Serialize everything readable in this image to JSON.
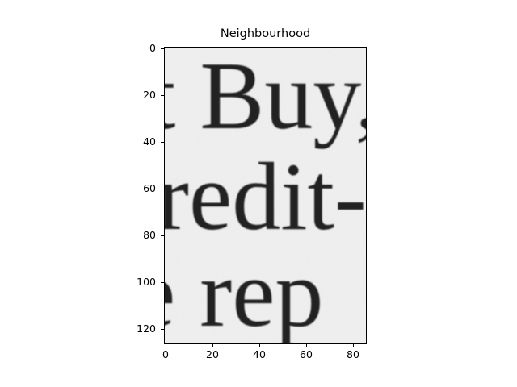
{
  "title": "Neighbourhood",
  "image": {
    "rows": [
      {
        "text": "t Buy,",
        "y": 28
      },
      {
        "text": "redit-",
        "y": 68
      },
      {
        "text": "e rep",
        "y": 112
      }
    ],
    "background": "#eeeeee",
    "ink": "#222222"
  },
  "chart_data": {
    "type": "image",
    "title": "Neighbourhood",
    "xlim": [
      -0.5,
      85.5
    ],
    "ylim": [
      126.5,
      -0.5
    ],
    "xticks": [
      0,
      20,
      40,
      60,
      80
    ],
    "yticks": [
      0,
      20,
      40,
      60,
      80,
      100,
      120
    ],
    "grid": false
  }
}
